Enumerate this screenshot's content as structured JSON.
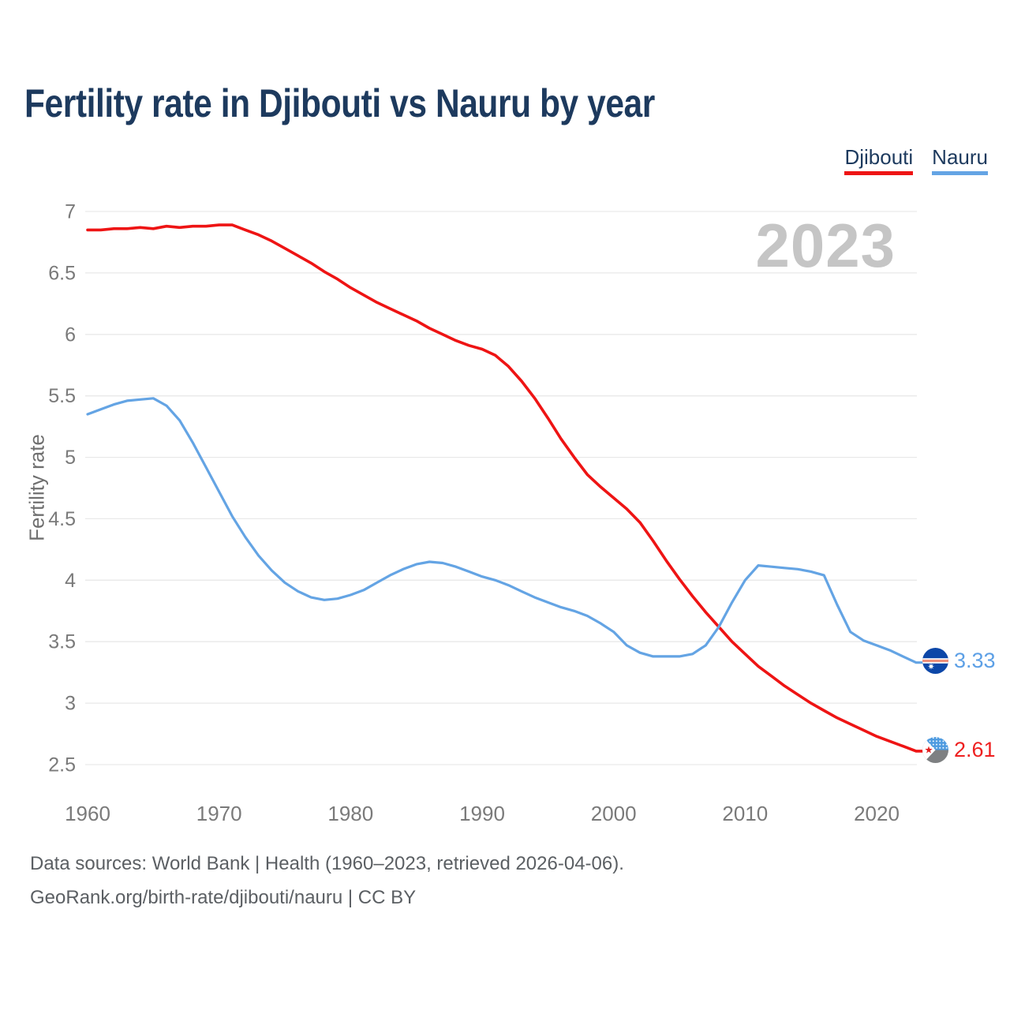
{
  "title": "Fertility rate in Djibouti vs Nauru by year",
  "watermark": "2023",
  "legend": {
    "items": [
      {
        "label": "Djibouti",
        "color": "#ee1414"
      },
      {
        "label": "Nauru",
        "color": "#64a4e4"
      }
    ]
  },
  "end_labels": {
    "nauru": {
      "value": "3.33",
      "color": "#5da0e6"
    },
    "djibouti": {
      "value": "2.61",
      "color": "#ee2020"
    }
  },
  "footer": {
    "line1": "Data sources: World Bank | Health (1960–2023, retrieved 2026-04-06).",
    "line2": "GeoRank.org/birth-rate/djibouti/nauru | CC BY"
  },
  "chart_data": {
    "type": "line",
    "title": "Fertility rate in Djibouti vs Nauru by year",
    "xlabel": "",
    "ylabel": "Fertility rate",
    "ylim": [
      2.5,
      7
    ],
    "yticks": [
      7,
      6.5,
      6,
      5.5,
      5,
      4.5,
      4,
      3.5,
      3,
      2.5
    ],
    "xticks": [
      1960,
      1970,
      1980,
      1990,
      2000,
      2010,
      2020
    ],
    "grid": "horizontal",
    "legend_position": "top-right",
    "x": [
      1960,
      1961,
      1962,
      1963,
      1964,
      1965,
      1966,
      1967,
      1968,
      1969,
      1970,
      1971,
      1972,
      1973,
      1974,
      1975,
      1976,
      1977,
      1978,
      1979,
      1980,
      1981,
      1982,
      1983,
      1984,
      1985,
      1986,
      1987,
      1988,
      1989,
      1990,
      1991,
      1992,
      1993,
      1994,
      1995,
      1996,
      1997,
      1998,
      1999,
      2000,
      2001,
      2002,
      2003,
      2004,
      2005,
      2006,
      2007,
      2008,
      2009,
      2010,
      2011,
      2012,
      2013,
      2014,
      2015,
      2016,
      2017,
      2018,
      2019,
      2020,
      2021,
      2022,
      2023
    ],
    "series": [
      {
        "name": "Djibouti",
        "color": "#ee1414",
        "width": 3.6,
        "values": [
          6.85,
          6.85,
          6.86,
          6.86,
          6.87,
          6.86,
          6.88,
          6.87,
          6.88,
          6.88,
          6.89,
          6.89,
          6.85,
          6.81,
          6.76,
          6.7,
          6.64,
          6.58,
          6.51,
          6.45,
          6.38,
          6.32,
          6.26,
          6.21,
          6.16,
          6.11,
          6.05,
          6.0,
          5.95,
          5.91,
          5.88,
          5.83,
          5.74,
          5.62,
          5.48,
          5.32,
          5.15,
          5.0,
          4.86,
          4.76,
          4.67,
          4.58,
          4.47,
          4.32,
          4.16,
          4.01,
          3.87,
          3.74,
          3.62,
          3.5,
          3.4,
          3.3,
          3.22,
          3.14,
          3.07,
          3.0,
          2.94,
          2.88,
          2.83,
          2.78,
          2.73,
          2.69,
          2.65,
          2.61
        ]
      },
      {
        "name": "Nauru",
        "color": "#64a4e4",
        "width": 3.2,
        "values": [
          5.35,
          5.39,
          5.43,
          5.46,
          5.47,
          5.48,
          5.42,
          5.3,
          5.12,
          4.92,
          4.72,
          4.52,
          4.35,
          4.2,
          4.08,
          3.98,
          3.91,
          3.86,
          3.84,
          3.85,
          3.88,
          3.92,
          3.98,
          4.04,
          4.09,
          4.13,
          4.15,
          4.14,
          4.11,
          4.07,
          4.03,
          4.0,
          3.96,
          3.91,
          3.86,
          3.82,
          3.78,
          3.75,
          3.71,
          3.65,
          3.58,
          3.47,
          3.41,
          3.38,
          3.38,
          3.38,
          3.4,
          3.47,
          3.62,
          3.82,
          4.0,
          4.12,
          4.11,
          4.1,
          4.09,
          4.07,
          4.04,
          3.8,
          3.58,
          3.51,
          3.47,
          3.43,
          3.38,
          3.33
        ]
      }
    ]
  }
}
